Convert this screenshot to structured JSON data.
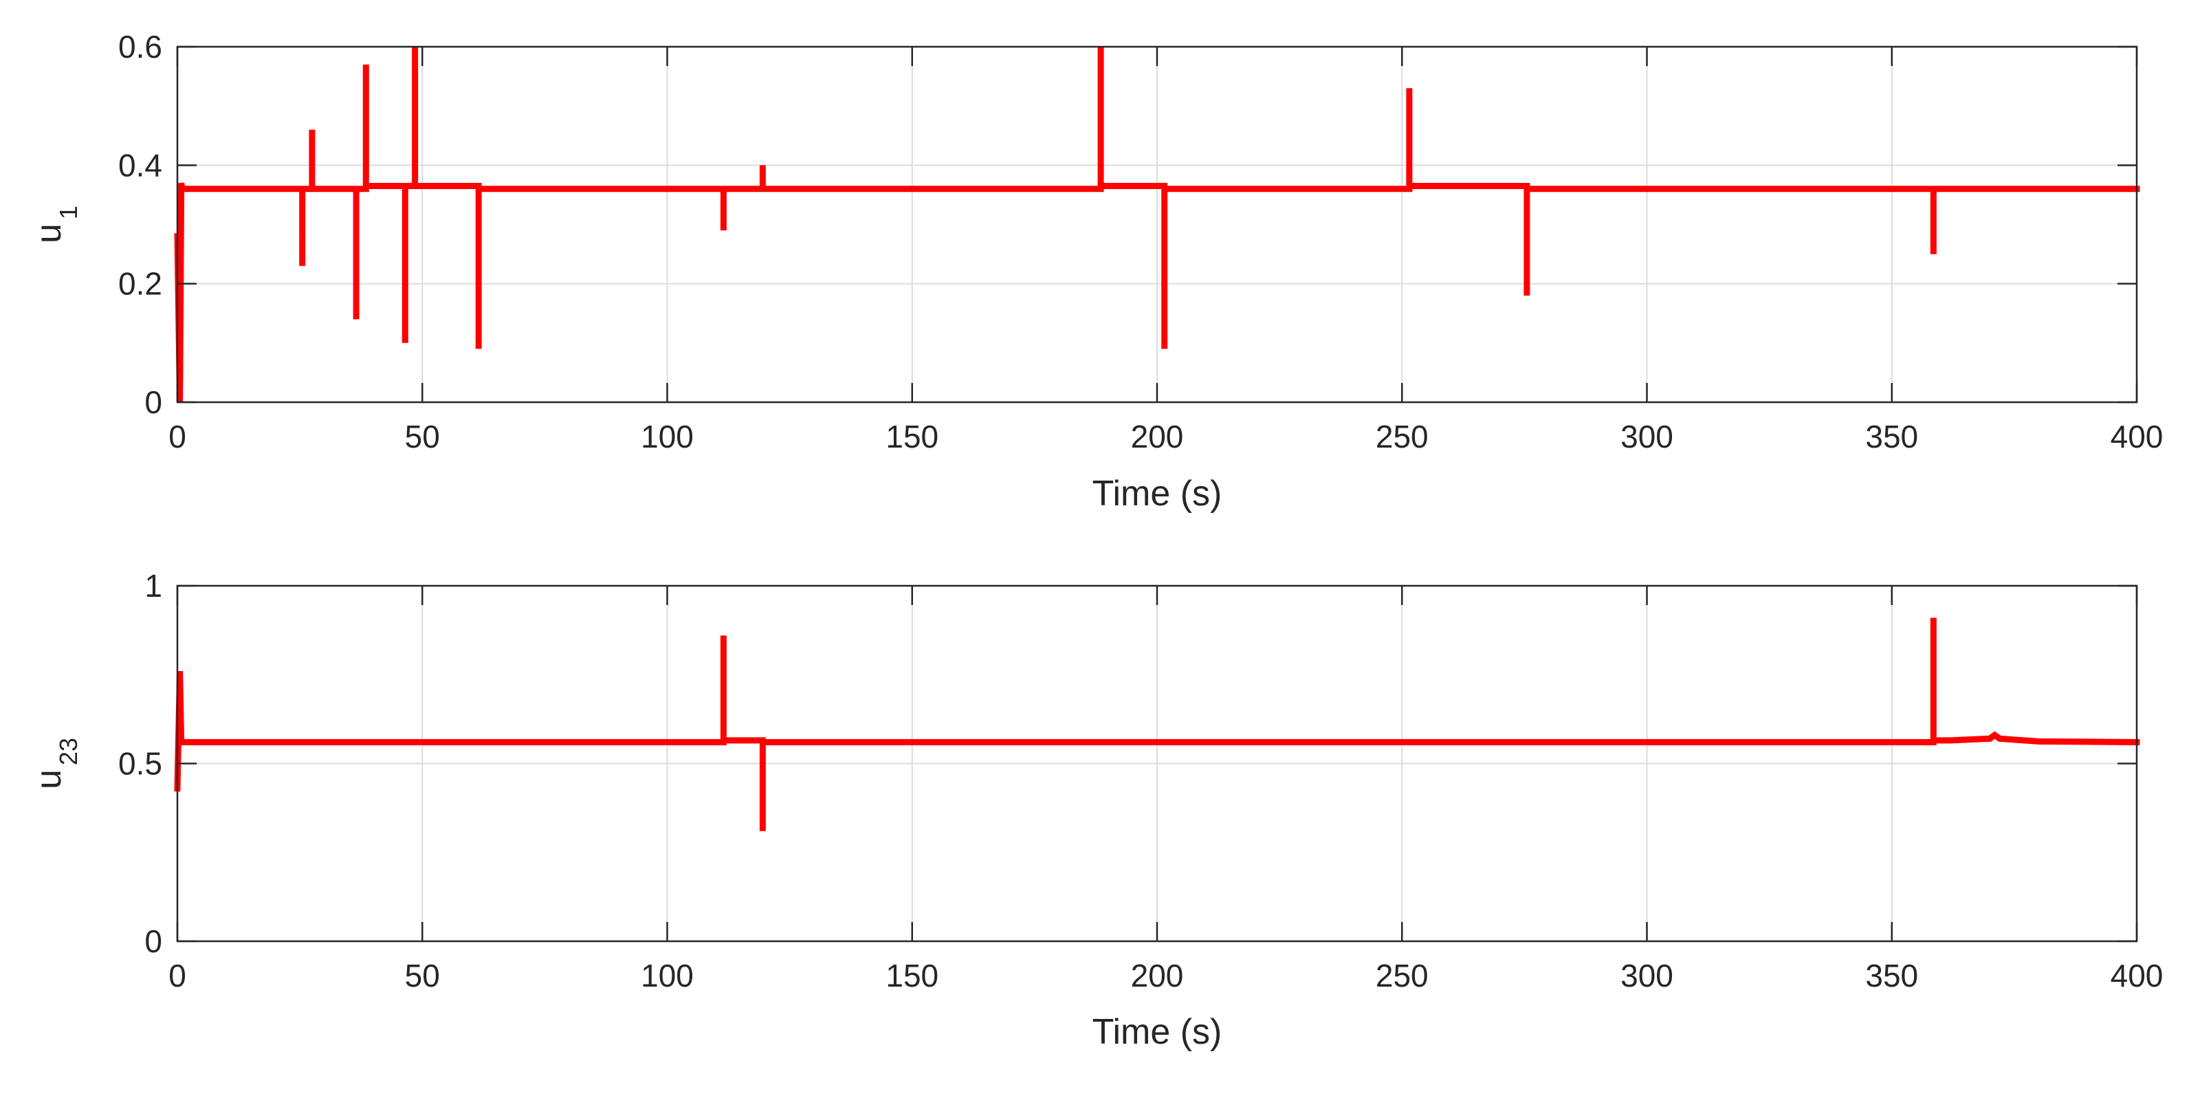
{
  "colors": {
    "line": "#ff0000",
    "grid": "#dcdcdc",
    "axes": "#262626",
    "background": "#ffffff"
  },
  "chart_data": [
    {
      "type": "line",
      "title": "",
      "xlabel": "Time (s)",
      "ylabel": "u",
      "ylabel_subscript": "1",
      "xlim": [
        0,
        400
      ],
      "ylim": [
        0,
        0.6
      ],
      "xticks": [
        0,
        50,
        100,
        150,
        200,
        250,
        300,
        350,
        400
      ],
      "yticks": [
        0,
        0.2,
        0.4,
        0.6
      ],
      "xtick_labels": [
        "0",
        "50",
        "100",
        "150",
        "200",
        "250",
        "300",
        "350",
        "400"
      ],
      "ytick_labels": [
        "0",
        "0.2",
        "0.4",
        "0.6"
      ],
      "grid": true,
      "series": [
        {
          "x": [
            0,
            0.5,
            0.8,
            1,
            25.5,
            25.5,
            25.5,
            27.5,
            27.5,
            27.5,
            36.5,
            36.5,
            36.5,
            38.5,
            38.5,
            38.5,
            46.5,
            46.5,
            46.5,
            48.5,
            48.5,
            48.5,
            61.5,
            61.5,
            61.5,
            111.5,
            111.5,
            111.5,
            119.5,
            119.5,
            119.5,
            188.5,
            188.5,
            188.5,
            201.5,
            201.5,
            201.5,
            251.5,
            251.5,
            251.5,
            275.5,
            275.5,
            275.5,
            358.5,
            358.5,
            358.5,
            400
          ],
          "y": [
            0.28,
            0,
            0.37,
            0.36,
            0.36,
            0.23,
            0.36,
            0.36,
            0.46,
            0.36,
            0.36,
            0.14,
            0.36,
            0.36,
            0.57,
            0.365,
            0.365,
            0.1,
            0.365,
            0.365,
            0.6,
            0.365,
            0.365,
            0.09,
            0.36,
            0.36,
            0.29,
            0.36,
            0.36,
            0.4,
            0.36,
            0.36,
            0.6,
            0.365,
            0.365,
            0.09,
            0.36,
            0.36,
            0.53,
            0.365,
            0.365,
            0.18,
            0.36,
            0.36,
            0.25,
            0.36,
            0.36
          ]
        }
      ]
    },
    {
      "type": "line",
      "title": "",
      "xlabel": "Time (s)",
      "ylabel": "u",
      "ylabel_subscript": "23",
      "xlim": [
        0,
        400
      ],
      "ylim": [
        0,
        1
      ],
      "xticks": [
        0,
        50,
        100,
        150,
        200,
        250,
        300,
        350,
        400
      ],
      "yticks": [
        0,
        0.5,
        1
      ],
      "xtick_labels": [
        "0",
        "50",
        "100",
        "150",
        "200",
        "250",
        "300",
        "350",
        "400"
      ],
      "ytick_labels": [
        "0",
        "0.5",
        "1"
      ],
      "grid": true,
      "series": [
        {
          "x": [
            0,
            0.5,
            0.8,
            1,
            111.5,
            111.5,
            111.5,
            119.5,
            119.5,
            119.5,
            358.5,
            358.5,
            358.5,
            362,
            370,
            371,
            372,
            380,
            400
          ],
          "y": [
            0.43,
            0.76,
            0.56,
            0.56,
            0.56,
            0.86,
            0.565,
            0.565,
            0.31,
            0.56,
            0.56,
            0.91,
            0.565,
            0.565,
            0.57,
            0.58,
            0.57,
            0.562,
            0.56
          ]
        }
      ]
    }
  ]
}
